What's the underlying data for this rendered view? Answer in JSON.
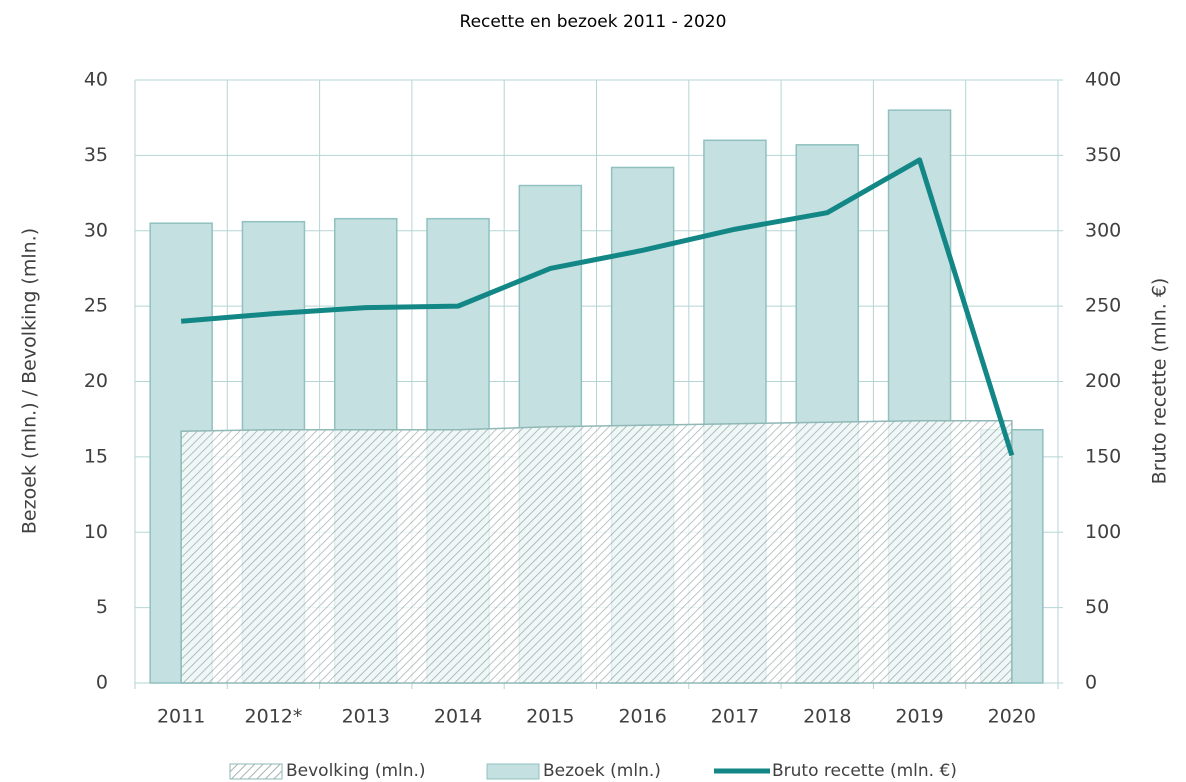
{
  "chart_data": {
    "type": "bar",
    "title": "Recette en bezoek 2011 - 2020",
    "categories": [
      "2011",
      "2012*",
      "2013",
      "2014",
      "2015",
      "2016",
      "2017",
      "2018",
      "2019",
      "2020"
    ],
    "y_label": "Bezoek (mln.) / Bevolking (mln.)",
    "y2_label": "Bruto recette (mln. €)",
    "ylim": [
      0,
      40
    ],
    "yticks": [
      0,
      5,
      10,
      15,
      20,
      25,
      30,
      35,
      40
    ],
    "y2lim": [
      0,
      400
    ],
    "y2ticks": [
      0,
      50,
      100,
      150,
      200,
      250,
      300,
      350,
      400
    ],
    "grid": true,
    "legend": "bottom",
    "series": [
      {
        "name": "Bevolking (mln.)",
        "type": "area",
        "color": "#8fb8b6",
        "values": [
          16.7,
          16.8,
          16.8,
          16.8,
          17.0,
          17.1,
          17.2,
          17.3,
          17.4,
          17.4
        ]
      },
      {
        "name": "Bezoek (mln.)",
        "type": "bar",
        "color": "#c5e0e1",
        "values": [
          30.5,
          30.6,
          30.8,
          30.8,
          33.0,
          34.2,
          36.0,
          35.7,
          38.0,
          16.8
        ]
      },
      {
        "name": "Bruto recette (mln. €)",
        "type": "line",
        "axis": "y2",
        "color": "#138786",
        "values": [
          240,
          245,
          249,
          250,
          275,
          287,
          301,
          312,
          347,
          151
        ]
      }
    ]
  }
}
